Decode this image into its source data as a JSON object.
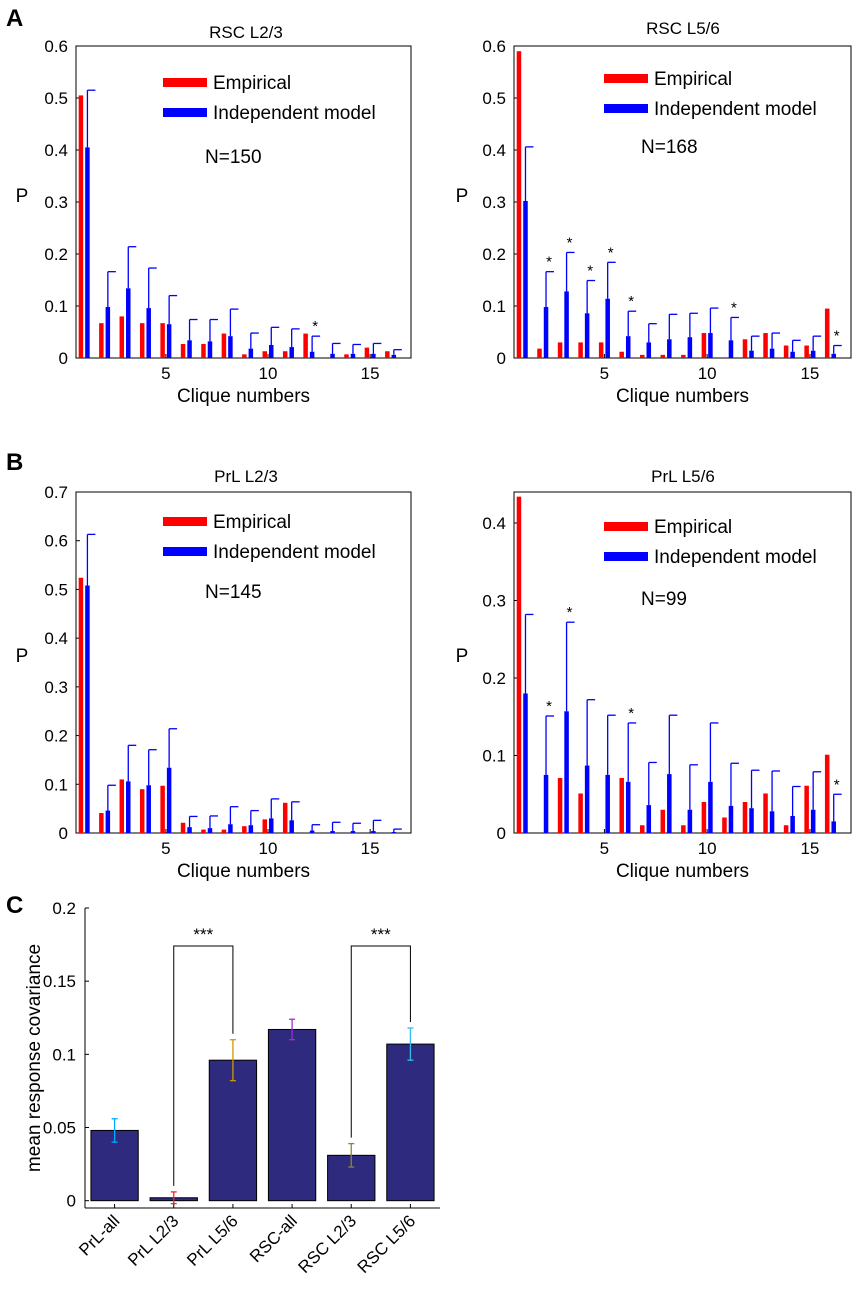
{
  "panel_labels": [
    "A",
    "B",
    "C"
  ],
  "colors": {
    "empirical": "#ff0000",
    "model": "#0000ff",
    "bar_fill": "#2e2a7e",
    "errA": "#00aaff",
    "errB": "#ff2222",
    "errC": "#cc9900",
    "errD": "#9933cc",
    "errE": "#888833",
    "errF": "#33bbee"
  },
  "chart_data": [
    {
      "type": "bar",
      "title": "RSC L2/3",
      "xlabel": "Clique numbers",
      "ylabel": "P",
      "ylim": [
        0,
        0.6
      ],
      "yticks": [
        "0",
        "0.1",
        "0.2",
        "0.3",
        "0.4",
        "0.5",
        "0.6"
      ],
      "xticks": [
        "5",
        "10",
        "15"
      ],
      "legend": [
        "Empirical",
        "Independent model"
      ],
      "n_label": "N=150",
      "categories": [
        1,
        2,
        3,
        4,
        5,
        6,
        7,
        8,
        9,
        10,
        11,
        12,
        13,
        14,
        15,
        16
      ],
      "series": [
        {
          "name": "Empirical",
          "values": [
            0.505,
            0.067,
            0.08,
            0.067,
            0.067,
            0.027,
            0.027,
            0.047,
            0.007,
            0.013,
            0.013,
            0.047,
            0.0,
            0.007,
            0.02,
            0.013
          ]
        },
        {
          "name": "Independent model",
          "values": [
            0.405,
            0.098,
            0.134,
            0.096,
            0.065,
            0.034,
            0.032,
            0.042,
            0.018,
            0.025,
            0.021,
            0.012,
            0.008,
            0.008,
            0.008,
            0.006
          ],
          "err": [
            0.11,
            0.068,
            0.08,
            0.077,
            0.055,
            0.04,
            0.042,
            0.052,
            0.03,
            0.034,
            0.035,
            0.03,
            0.02,
            0.018,
            0.02,
            0.01
          ]
        }
      ],
      "significant": [
        12
      ]
    },
    {
      "type": "bar",
      "title": "RSC L5/6",
      "xlabel": "Clique numbers",
      "ylabel": "P",
      "ylim": [
        0,
        0.6
      ],
      "yticks": [
        "0",
        "0.1",
        "0.2",
        "0.3",
        "0.4",
        "0.5",
        "0.6"
      ],
      "xticks": [
        "5",
        "10",
        "15"
      ],
      "legend": [
        "Empirical",
        "Independent model"
      ],
      "n_label": "N=168",
      "categories": [
        1,
        2,
        3,
        4,
        5,
        6,
        7,
        8,
        9,
        10,
        11,
        12,
        13,
        14,
        15,
        16
      ],
      "series": [
        {
          "name": "Empirical",
          "values": [
            0.59,
            0.018,
            0.03,
            0.03,
            0.03,
            0.012,
            0.006,
            0.006,
            0.006,
            0.048,
            0.0,
            0.036,
            0.048,
            0.024,
            0.024,
            0.095
          ]
        },
        {
          "name": "Independent model",
          "values": [
            0.302,
            0.098,
            0.128,
            0.086,
            0.114,
            0.042,
            0.03,
            0.036,
            0.04,
            0.048,
            0.034,
            0.014,
            0.018,
            0.012,
            0.014,
            0.008
          ],
          "err": [
            0.104,
            0.068,
            0.075,
            0.063,
            0.07,
            0.048,
            0.036,
            0.048,
            0.046,
            0.048,
            0.044,
            0.028,
            0.03,
            0.022,
            0.028,
            0.016
          ]
        }
      ],
      "significant": [
        2,
        3,
        4,
        5,
        6,
        11,
        16
      ]
    },
    {
      "type": "bar",
      "title": "PrL L2/3",
      "xlabel": "Clique numbers",
      "ylabel": "P",
      "ylim": [
        0,
        0.7
      ],
      "yticks": [
        "0",
        "0.1",
        "0.2",
        "0.3",
        "0.4",
        "0.5",
        "0.6",
        "0.7"
      ],
      "xticks": [
        "5",
        "10",
        "15"
      ],
      "legend": [
        "Empirical",
        "Independent model"
      ],
      "n_label": "N=145",
      "categories": [
        1,
        2,
        3,
        4,
        5,
        6,
        7,
        8,
        9,
        10,
        11,
        12,
        13,
        14,
        15,
        16
      ],
      "series": [
        {
          "name": "Empirical",
          "values": [
            0.524,
            0.041,
            0.11,
            0.09,
            0.097,
            0.021,
            0.007,
            0.007,
            0.014,
            0.028,
            0.062,
            0.0,
            0.0,
            0.0,
            0.0,
            0.0
          ]
        },
        {
          "name": "Independent model",
          "values": [
            0.508,
            0.046,
            0.106,
            0.098,
            0.134,
            0.012,
            0.01,
            0.018,
            0.016,
            0.03,
            0.026,
            0.005,
            0.004,
            0.004,
            0.004,
            0.002
          ],
          "err": [
            0.105,
            0.052,
            0.074,
            0.073,
            0.08,
            0.022,
            0.025,
            0.036,
            0.03,
            0.04,
            0.038,
            0.012,
            0.018,
            0.016,
            0.022,
            0.006
          ]
        }
      ],
      "significant": []
    },
    {
      "type": "bar",
      "title": "PrL L5/6",
      "xlabel": "Clique numbers",
      "ylabel": "P",
      "ylim": [
        0,
        0.44
      ],
      "yticks": [
        "0",
        "0.1",
        "0.2",
        "0.3",
        "0.4"
      ],
      "xticks": [
        "5",
        "10",
        "15"
      ],
      "legend": [
        "Empirical",
        "Independent model"
      ],
      "n_label": "N=99",
      "categories": [
        1,
        2,
        3,
        4,
        5,
        6,
        7,
        8,
        9,
        10,
        11,
        12,
        13,
        14,
        15,
        16
      ],
      "series": [
        {
          "name": "Empirical",
          "values": [
            0.434,
            0.0,
            0.071,
            0.051,
            0.0,
            0.071,
            0.01,
            0.03,
            0.01,
            0.04,
            0.02,
            0.04,
            0.051,
            0.01,
            0.061,
            0.101
          ]
        },
        {
          "name": "Independent model",
          "values": [
            0.18,
            0.075,
            0.157,
            0.087,
            0.075,
            0.066,
            0.036,
            0.076,
            0.03,
            0.066,
            0.035,
            0.032,
            0.028,
            0.022,
            0.03,
            0.015
          ],
          "err": [
            0.102,
            0.076,
            0.115,
            0.085,
            0.077,
            0.076,
            0.055,
            0.076,
            0.058,
            0.076,
            0.055,
            0.049,
            0.052,
            0.038,
            0.049,
            0.035
          ]
        }
      ],
      "significant": [
        2,
        3,
        6,
        16
      ]
    },
    {
      "type": "bar",
      "xlabel": "",
      "ylabel": "mean response covariance",
      "ylim": [
        -0.005,
        0.2
      ],
      "yticks": [
        "0",
        "0.05",
        "0.1",
        "0.15",
        "0.2"
      ],
      "categories": [
        "PrL-all",
        "PrL L2/3",
        "PrL L5/6",
        "RSC-all",
        "RSC L2/3",
        "RSC L5/6"
      ],
      "values": [
        0.048,
        0.002,
        0.096,
        0.117,
        0.031,
        0.107
      ],
      "err": [
        0.008,
        0.004,
        0.014,
        0.007,
        0.008,
        0.011
      ],
      "comparisons": [
        {
          "from": "PrL L2/3",
          "to": "PrL L5/6",
          "label": "***"
        },
        {
          "from": "RSC L2/3",
          "to": "RSC L5/6",
          "label": "***"
        }
      ]
    }
  ]
}
